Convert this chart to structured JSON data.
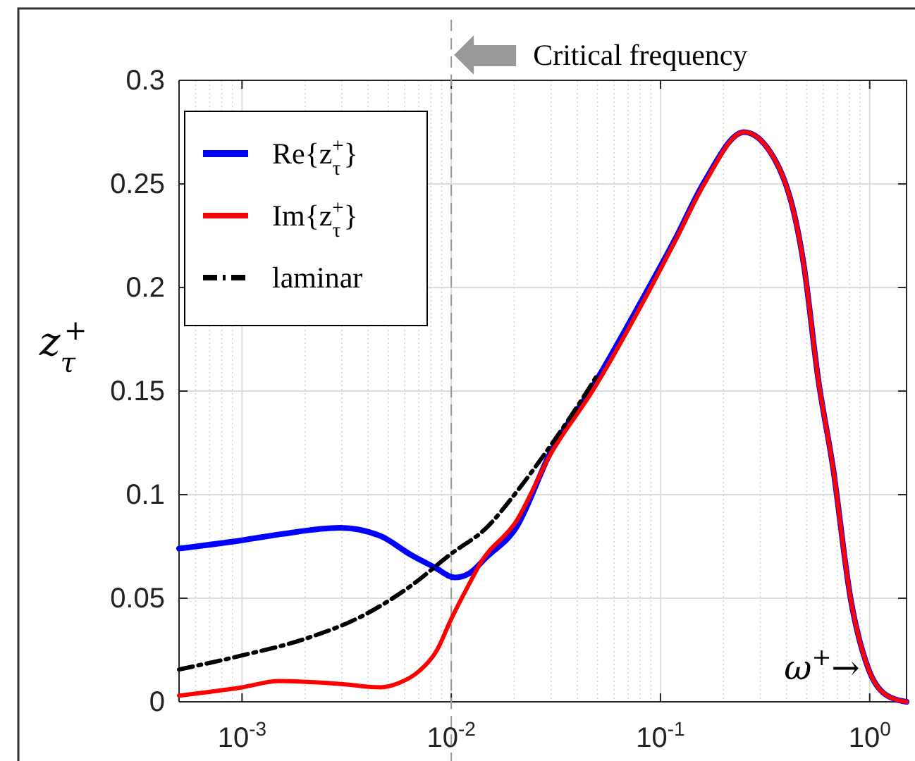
{
  "chart_data": {
    "type": "line",
    "xlabel": "ω$^{+}$→",
    "ylabel": "z$_{τ}$$^{+}$",
    "log": "x",
    "xlim": [
      0.0005,
      1.5
    ],
    "xticks": [
      {
        "value": 0.001,
        "label": "10$^{-3}$"
      },
      {
        "value": 0.01,
        "label": "10$^{-2}$"
      },
      {
        "value": 0.1,
        "label": "10$^{-1}$"
      },
      {
        "value": 1,
        "label": "10$^{0}$"
      }
    ],
    "ylim": [
      0,
      0.3
    ],
    "yticks": [
      0,
      0.05,
      0.1,
      0.15,
      0.2,
      0.25,
      0.3
    ],
    "grid": true,
    "legend": "top left",
    "ref_lines": [
      {
        "axis": "x",
        "value": 0.01,
        "label": "Critical frequency",
        "color": "#999999",
        "line_style": "dashed"
      }
    ],
    "series": [
      {
        "name": "Re{z$_{τ}$$^{+}$}",
        "color": "#0000ff",
        "x": [
          0.0005,
          0.001,
          0.00155,
          0.00295,
          0.0046,
          0.0064,
          0.0083,
          0.0104,
          0.0122,
          0.0148,
          0.0204,
          0.03,
          0.0473,
          0.0847,
          0.117,
          0.162,
          0.251,
          0.351,
          0.484,
          0.569,
          0.668,
          0.81,
          0.985,
          1.19,
          1.5
        ],
        "values": [
          0.074,
          0.078,
          0.081,
          0.084,
          0.08,
          0.071,
          0.065,
          0.06,
          0.062,
          0.07,
          0.084,
          0.121,
          0.152,
          0.197,
          0.223,
          0.251,
          0.275,
          0.262,
          0.211,
          0.155,
          0.113,
          0.05,
          0.016,
          0.0035,
          0
        ]
      },
      {
        "name": "Im{z$_{τ}$$^{+}$}",
        "color": "#ff0000",
        "x": [
          0.0005,
          0.001,
          0.0015,
          0.00295,
          0.0046,
          0.0056,
          0.00705,
          0.00855,
          0.01,
          0.0122,
          0.0138,
          0.0204,
          0.03,
          0.0473,
          0.0847,
          0.117,
          0.162,
          0.251,
          0.351,
          0.484,
          0.569,
          0.668,
          0.81,
          0.985,
          1.19,
          1.5
        ],
        "values": [
          0.003,
          0.007,
          0.01,
          0.0086,
          0.007,
          0.009,
          0.015,
          0.025,
          0.04,
          0.057,
          0.067,
          0.087,
          0.12,
          0.15,
          0.195,
          0.222,
          0.25,
          0.275,
          0.262,
          0.211,
          0.155,
          0.113,
          0.05,
          0.016,
          0.0035,
          0
        ]
      },
      {
        "name": "laminar",
        "color": "#000000",
        "line_style": "dashdot",
        "x": [
          0.0005,
          0.001,
          0.002,
          0.0038,
          0.0064,
          0.01,
          0.0148,
          0.0204,
          0.03,
          0.0473,
          0.05
        ],
        "values": [
          0.0156,
          0.0224,
          0.0304,
          0.0417,
          0.0559,
          0.0715,
          0.0842,
          0.101,
          0.124,
          0.154,
          0.158
        ]
      }
    ]
  }
}
